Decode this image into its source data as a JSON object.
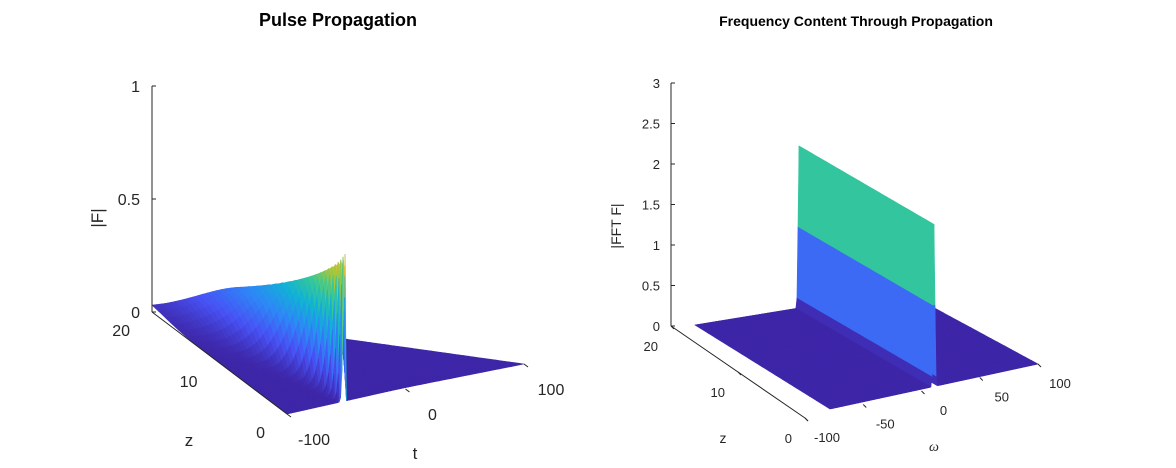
{
  "chart_data": [
    {
      "type": "surface",
      "title": "Pulse Propagation",
      "xlabel": "t",
      "ylabel": "z",
      "zlabel": "|F|",
      "xlim": [
        -100,
        100
      ],
      "ylim": [
        0,
        20
      ],
      "zlim": [
        0,
        1
      ],
      "xticks": [
        "-100",
        "0",
        "100"
      ],
      "yticks": [
        "0",
        "10",
        "20"
      ],
      "zticks": [
        "0",
        "0.5",
        "1"
      ],
      "grid": false,
      "pulse_center_t": 0,
      "peak_abs_F_at_z0": 0.65,
      "peak_abs_F_at_z20": 0.17,
      "peak_t_at_z20": -45,
      "colormap": "parula"
    },
    {
      "type": "surface",
      "title": "Frequency Content Through Propagation",
      "xlabel": "ω",
      "ylabel": "z",
      "zlabel": "|FFT F|",
      "xlim": [
        -100,
        100
      ],
      "ylim": [
        0,
        20
      ],
      "zlim": [
        0,
        3
      ],
      "xticks": [
        "-100",
        "-50",
        "0",
        "50",
        "100"
      ],
      "yticks": [
        "0",
        "10",
        "20"
      ],
      "zticks": [
        "0",
        "0.5",
        "1",
        "1.5",
        "2",
        "2.5",
        "3"
      ],
      "grid": false,
      "spectrum_center_omega": 0,
      "spectrum_peak": 2.0,
      "colormap": "parula"
    }
  ]
}
